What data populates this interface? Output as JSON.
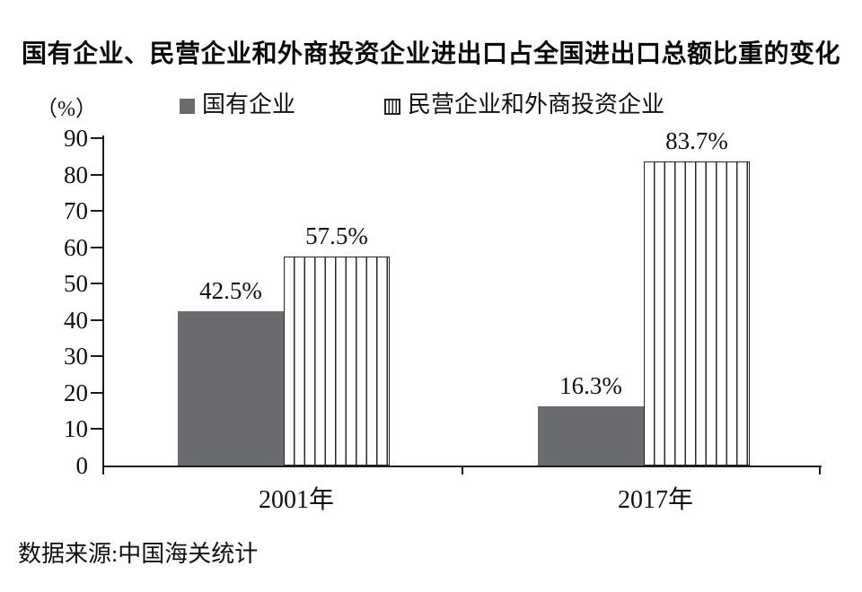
{
  "title": "国有企业、民营企业和外商投资企业进出口占全国进出口总额比重的变化",
  "legend": {
    "items": [
      {
        "label": "国有企业",
        "swatch": "solid"
      },
      {
        "label": "民营企业和外商投资企业",
        "swatch": "striped"
      }
    ]
  },
  "source_note": "数据来源:中国海关统计",
  "colors": {
    "solid_bar": "#6a6b6f",
    "stripe_line": "#2b2b2b",
    "stripe_bg": "#ffffff",
    "bar_border": "#262626",
    "axis": "#1c1c1c",
    "text": "#101010"
  },
  "chart_data": {
    "type": "bar",
    "title": "国有企业、民营企业和外商投资企业进出口占全国进出口总额比重的变化",
    "categories": [
      "2001年",
      "2017年"
    ],
    "series": [
      {
        "name": "国有企业",
        "style": "solid",
        "values": [
          42.5,
          16.3
        ],
        "labels": [
          "42.5%",
          "16.3%"
        ]
      },
      {
        "name": "民营企业和外商投资企业",
        "style": "striped",
        "values": [
          57.5,
          83.7
        ],
        "labels": [
          "57.5%",
          "83.7%"
        ]
      }
    ],
    "ylabel": "（%）",
    "xlabel": "",
    "ylim": [
      0,
      90
    ],
    "yticks": [
      0,
      10,
      20,
      30,
      40,
      50,
      60,
      70,
      80,
      90
    ],
    "grid": false,
    "legend_position": "top",
    "source": "数据来源:中国海关统计"
  }
}
